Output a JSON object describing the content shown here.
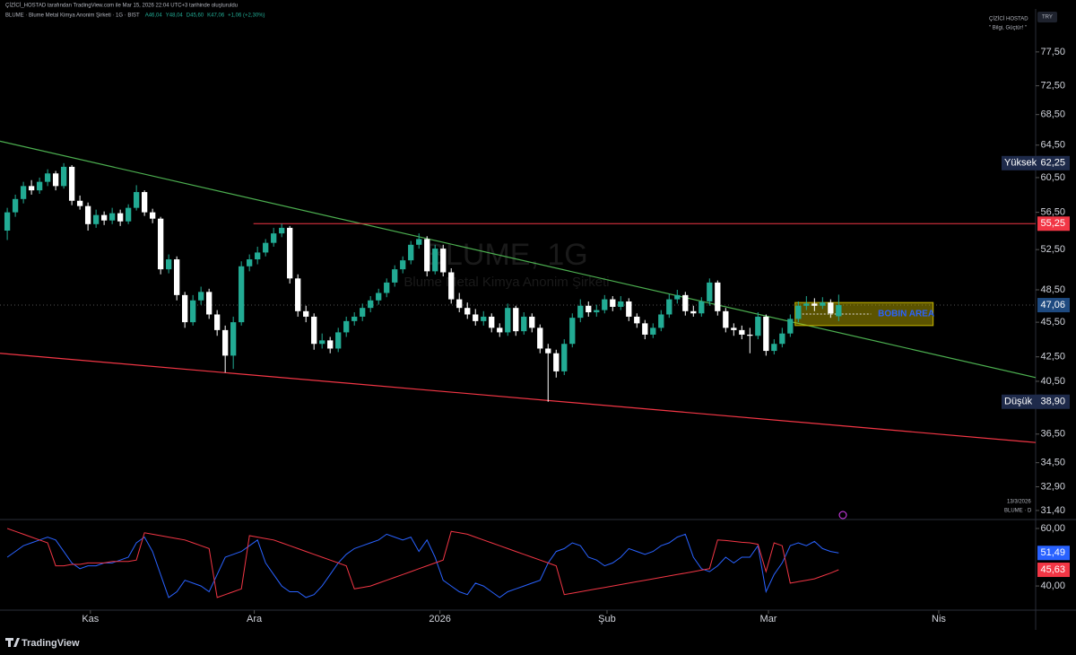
{
  "header": {
    "credit": "ÇİZİCİ_HOSTAD tarafından TradingView.com ile Mar 15, 2026 22:04 UTC+3 tarihinde oluşturuldu",
    "symbol": "BLUME · Blume Metal Kimya Anonim Şirketi · 1G · BIST",
    "ohlc": [
      "A46,04",
      "Y48,04",
      "D45,60",
      "K47,06",
      "+1,06 (+2,30%)"
    ]
  },
  "top_right": {
    "author": "ÇİZİCİ HOSTAD",
    "quote": "\" Bilgi, Güçtür! \"",
    "currency": "TRY"
  },
  "watermark": {
    "symbol": "BLUME, 1G",
    "name": "Blume Metal Kimya Anonim Şirketi"
  },
  "chart_data": {
    "type": "candlestick",
    "log_scale": true,
    "ylim": [
      30.9,
      83.6
    ],
    "yticks": [
      {
        "value": 31.4,
        "label": "31,40"
      },
      {
        "value": 32.9,
        "label": "32,90"
      },
      {
        "value": 34.5,
        "label": "34,50"
      },
      {
        "value": 36.5,
        "label": "36,50"
      },
      {
        "value": 40.5,
        "label": "40,50"
      },
      {
        "value": 42.5,
        "label": "42,50"
      },
      {
        "value": 45.5,
        "label": "45,50"
      },
      {
        "value": 48.5,
        "label": "48,50"
      },
      {
        "value": 52.5,
        "label": "52,50"
      },
      {
        "value": 56.5,
        "label": "56,50"
      },
      {
        "value": 60.5,
        "label": "60,50"
      },
      {
        "value": 64.5,
        "label": "64,50"
      },
      {
        "value": 68.5,
        "label": "68,50"
      },
      {
        "value": 72.5,
        "label": "72,50"
      },
      {
        "value": 77.5,
        "label": "77,50"
      }
    ],
    "xlim": [
      -0.9,
      127.4
    ],
    "xticks": [
      {
        "value": 10.3,
        "label": "Kas"
      },
      {
        "value": 30.6,
        "label": "Ara"
      },
      {
        "value": 53.6,
        "label": "2026"
      },
      {
        "value": 74.3,
        "label": "Şub"
      },
      {
        "value": 94.3,
        "label": "Mar"
      },
      {
        "value": 115.4,
        "label": "Nis"
      }
    ],
    "up_color": "#22ab94",
    "down_color": "#ffffff",
    "candles": [
      [
        54.5,
        57.0,
        53.5,
        56.5
      ],
      [
        56.5,
        58.5,
        56.0,
        58.0
      ],
      [
        58.0,
        60.0,
        57.5,
        59.5
      ],
      [
        59.5,
        60.2,
        58.5,
        59.0
      ],
      [
        59.0,
        60.5,
        58.6,
        60.0
      ],
      [
        60.0,
        61.5,
        59.5,
        61.0
      ],
      [
        61.0,
        61.3,
        59.0,
        59.5
      ],
      [
        59.5,
        62.25,
        59.2,
        61.8
      ],
      [
        61.8,
        62.0,
        57.3,
        57.8
      ],
      [
        57.8,
        58.4,
        56.8,
        57.2
      ],
      [
        57.2,
        57.6,
        54.5,
        55.2
      ],
      [
        55.2,
        56.8,
        54.8,
        56.2
      ],
      [
        56.2,
        56.6,
        55.1,
        55.6
      ],
      [
        55.6,
        57.0,
        55.2,
        56.4
      ],
      [
        56.4,
        56.8,
        55.0,
        55.5
      ],
      [
        55.5,
        57.4,
        55.2,
        57.0
      ],
      [
        57.0,
        59.6,
        56.7,
        58.8
      ],
      [
        58.8,
        59.0,
        56.1,
        56.5
      ],
      [
        56.5,
        56.9,
        55.3,
        55.8
      ],
      [
        55.8,
        56.0,
        50.0,
        50.5
      ],
      [
        50.5,
        52.0,
        50.1,
        51.5
      ],
      [
        51.5,
        51.8,
        47.5,
        48.0
      ],
      [
        48.0,
        48.3,
        45.0,
        45.5
      ],
      [
        45.5,
        48.0,
        45.2,
        47.5
      ],
      [
        47.5,
        48.8,
        47.1,
        48.3
      ],
      [
        48.3,
        48.6,
        45.8,
        46.2
      ],
      [
        46.2,
        46.6,
        44.3,
        44.8
      ],
      [
        44.8,
        45.2,
        41.2,
        42.6
      ],
      [
        42.6,
        46.0,
        41.5,
        45.5
      ],
      [
        45.5,
        51.3,
        45.2,
        50.8
      ],
      [
        50.8,
        52.0,
        50.3,
        51.5
      ],
      [
        51.5,
        52.8,
        51.0,
        52.2
      ],
      [
        52.2,
        53.6,
        51.8,
        53.2
      ],
      [
        53.2,
        54.8,
        52.8,
        54.2
      ],
      [
        54.2,
        55.25,
        53.8,
        54.8
      ],
      [
        54.8,
        55.0,
        49.1,
        49.6
      ],
      [
        49.6,
        50.0,
        46.0,
        46.5
      ],
      [
        46.5,
        47.0,
        45.5,
        46.0
      ],
      [
        46.0,
        46.3,
        43.1,
        43.6
      ],
      [
        43.6,
        44.5,
        43.2,
        43.9
      ],
      [
        43.9,
        44.2,
        42.8,
        43.2
      ],
      [
        43.2,
        45.0,
        42.9,
        44.6
      ],
      [
        44.6,
        46.0,
        44.2,
        45.6
      ],
      [
        45.6,
        46.4,
        45.2,
        46.0
      ],
      [
        46.0,
        47.2,
        45.6,
        46.8
      ],
      [
        46.8,
        47.9,
        46.4,
        47.5
      ],
      [
        47.5,
        48.6,
        47.1,
        48.2
      ],
      [
        48.2,
        49.6,
        47.8,
        49.2
      ],
      [
        49.2,
        50.9,
        48.8,
        50.5
      ],
      [
        50.5,
        51.8,
        50.1,
        51.4
      ],
      [
        51.4,
        53.4,
        51.0,
        53.0
      ],
      [
        53.0,
        54.2,
        52.6,
        53.6
      ],
      [
        53.6,
        53.9,
        49.8,
        50.3
      ],
      [
        50.3,
        53.0,
        50.0,
        52.6
      ],
      [
        52.6,
        53.0,
        49.8,
        50.2
      ],
      [
        50.2,
        50.6,
        47.2,
        47.6
      ],
      [
        47.6,
        48.2,
        46.4,
        46.8
      ],
      [
        46.8,
        47.3,
        45.8,
        46.2
      ],
      [
        46.2,
        46.7,
        45.2,
        45.6
      ],
      [
        45.6,
        46.5,
        45.2,
        46.0
      ],
      [
        46.0,
        46.3,
        44.6,
        45.0
      ],
      [
        45.0,
        45.4,
        44.2,
        44.6
      ],
      [
        44.6,
        47.2,
        44.3,
        46.8
      ],
      [
        46.8,
        47.0,
        44.3,
        44.7
      ],
      [
        44.7,
        46.4,
        44.4,
        46.0
      ],
      [
        46.0,
        46.3,
        44.6,
        45.0
      ],
      [
        45.0,
        45.3,
        42.8,
        43.2
      ],
      [
        43.2,
        43.6,
        38.9,
        42.8
      ],
      [
        42.8,
        43.1,
        40.8,
        41.3
      ],
      [
        41.3,
        44.0,
        41.0,
        43.6
      ],
      [
        43.6,
        46.3,
        43.3,
        45.9
      ],
      [
        45.9,
        47.6,
        45.5,
        47.0
      ],
      [
        47.0,
        47.4,
        46.0,
        46.4
      ],
      [
        46.4,
        47.1,
        46.0,
        46.6
      ],
      [
        46.6,
        48.0,
        46.3,
        47.6
      ],
      [
        47.6,
        47.9,
        46.5,
        46.9
      ],
      [
        46.9,
        47.9,
        46.6,
        47.4
      ],
      [
        47.4,
        47.7,
        45.6,
        46.0
      ],
      [
        46.0,
        46.3,
        45.0,
        45.4
      ],
      [
        45.4,
        45.7,
        44.0,
        44.4
      ],
      [
        44.4,
        45.4,
        44.1,
        45.0
      ],
      [
        45.0,
        46.6,
        44.7,
        46.2
      ],
      [
        46.2,
        48.1,
        45.9,
        47.6
      ],
      [
        47.6,
        48.5,
        47.2,
        48.0
      ],
      [
        48.0,
        48.3,
        46.1,
        46.5
      ],
      [
        46.5,
        47.0,
        46.0,
        46.3
      ],
      [
        46.3,
        47.8,
        46.0,
        47.4
      ],
      [
        47.4,
        49.6,
        47.0,
        49.2
      ],
      [
        49.2,
        49.4,
        46.1,
        46.5
      ],
      [
        46.5,
        46.8,
        44.6,
        45.0
      ],
      [
        45.0,
        45.4,
        44.3,
        44.8
      ],
      [
        44.8,
        45.2,
        44.0,
        44.4
      ],
      [
        44.4,
        45.0,
        42.8,
        44.3
      ],
      [
        44.3,
        46.4,
        44.0,
        46.0
      ],
      [
        46.0,
        46.2,
        42.6,
        43.0
      ],
      [
        43.0,
        44.0,
        42.7,
        43.6
      ],
      [
        43.6,
        45.0,
        43.3,
        44.5
      ],
      [
        44.5,
        46.2,
        44.2,
        45.8
      ],
      [
        45.8,
        47.4,
        45.5,
        47.0
      ],
      [
        47.0,
        47.9,
        46.6,
        47.2
      ],
      [
        47.2,
        47.7,
        46.5,
        47.0
      ],
      [
        47.0,
        47.8,
        46.7,
        47.3
      ],
      [
        47.3,
        47.6,
        45.9,
        46.3
      ],
      [
        46.04,
        48.04,
        45.6,
        47.06
      ]
    ],
    "high_marker": {
      "label": "Yüksek",
      "value": 62.25,
      "value_label": "62,25",
      "color": "#1e2a4a"
    },
    "low_marker": {
      "label": "Düşük",
      "value": 38.9,
      "value_label": "38,90",
      "color": "#1e2a4a"
    },
    "last_price": {
      "value": 47.06,
      "value_label": "47,06",
      "color": "#1e4a80"
    },
    "hlines": [
      {
        "value": 55.25,
        "value_label": "55,25",
        "color": "#f23645",
        "x_range": [
          30.5,
          127.4
        ]
      }
    ],
    "trendlines": [
      {
        "x": [
          -0.9,
          127.4
        ],
        "y": [
          65.0,
          40.8
        ],
        "color": "#4caf50"
      },
      {
        "x": [
          -0.9,
          127.4
        ],
        "y": [
          42.8,
          35.9
        ],
        "color": "#f23645"
      }
    ],
    "zone": {
      "x": [
        97.6,
        114.7
      ],
      "y": [
        45.2,
        47.3
      ],
      "label": "BOBIN AREA",
      "color": "#c9b800",
      "label_color": "#2962ff"
    },
    "indicator": {
      "ylim": [
        31.6,
        62.8
      ],
      "yticks": [
        {
          "value": 60,
          "label": "60,00"
        },
        {
          "value": 40,
          "label": "40,00"
        }
      ],
      "series": [
        {
          "color": "#2962ff",
          "value_label": "51,49",
          "values": [
            50,
            52,
            54,
            55,
            56,
            57,
            56,
            52,
            48,
            46,
            47,
            47,
            48,
            48,
            49,
            50,
            55,
            57,
            52,
            44,
            36,
            38,
            42,
            41,
            40,
            38,
            44,
            50,
            51,
            52,
            54,
            56,
            48,
            44,
            40,
            38,
            38,
            36,
            37,
            40,
            44,
            48,
            51,
            53,
            54,
            55,
            56,
            58,
            57,
            56,
            57,
            52,
            56,
            50,
            42,
            40,
            38,
            37,
            41,
            40,
            38,
            36,
            38,
            39,
            40,
            41,
            42,
            48,
            52,
            53,
            55,
            54,
            50,
            49,
            47,
            48,
            50,
            53,
            52,
            51,
            52,
            54,
            55,
            57,
            58,
            50,
            46,
            45,
            47,
            50,
            48,
            50,
            50,
            54,
            38,
            44,
            48,
            54,
            55,
            54,
            55.5,
            53,
            52,
            51.49
          ]
        },
        {
          "color": "#f23645",
          "value_label": "45,63",
          "values": [
            60,
            59,
            58,
            57,
            56,
            55,
            47,
            47,
            47.5,
            47.5,
            48,
            48,
            48,
            48.5,
            48.5,
            48.5,
            49,
            58.5,
            58,
            57.5,
            57,
            56.5,
            56,
            55,
            54,
            53,
            36,
            37,
            38,
            39,
            57.5,
            57,
            56.5,
            56,
            55,
            54,
            53,
            52,
            51,
            50,
            49,
            48,
            47,
            39,
            39.5,
            40,
            41,
            42,
            43,
            44,
            45,
            46,
            47,
            48,
            49,
            59,
            58.5,
            58,
            57,
            56,
            55,
            54,
            53,
            52,
            51,
            50,
            49,
            48,
            47,
            37,
            37.5,
            38,
            38.5,
            39,
            39.5,
            40,
            40.5,
            41,
            41.5,
            42,
            42.5,
            43,
            43.5,
            44,
            44.5,
            45,
            45.5,
            46,
            56,
            55.8,
            55.5,
            55.2,
            55,
            54.5,
            45,
            55,
            54,
            41,
            41.5,
            42,
            42.5,
            43.5,
            44.5,
            45.63
          ]
        }
      ]
    }
  },
  "footer": {
    "date": "13/3/2026",
    "series_label": "BLUME · D",
    "brand": "TradingView"
  }
}
